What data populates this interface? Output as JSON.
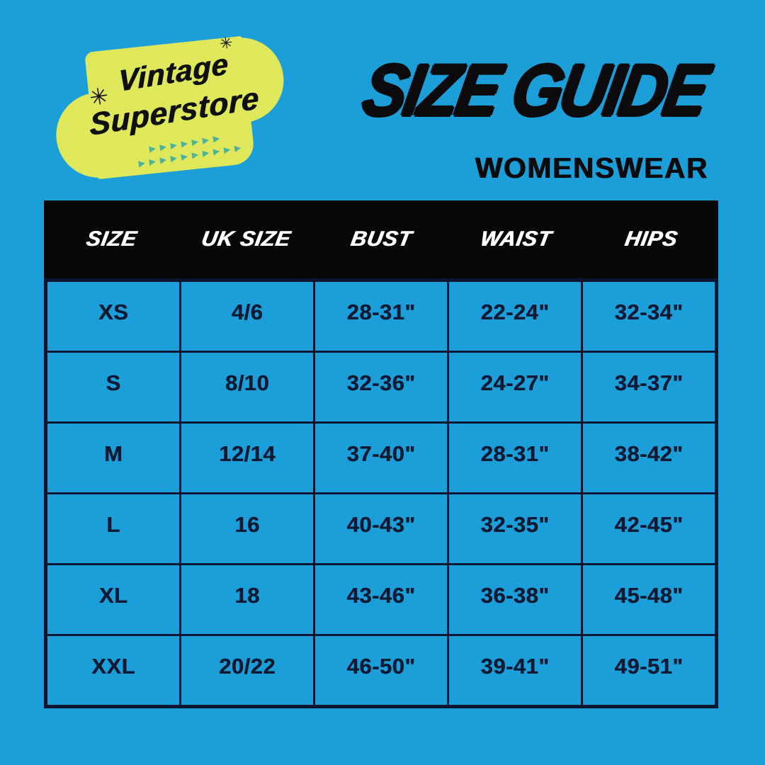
{
  "page": {
    "background_color": "#1C9ED9"
  },
  "logo": {
    "line1": "Vintage",
    "line2": "Superstore",
    "badge_color": "#DEE85A",
    "text_color": "#101010",
    "arrow_color": "#4BB39B",
    "sparkle_glyph": "✳",
    "arrows_row1": "▶▶▶▶▶▶▶",
    "arrows_row2": "▶▶▶▶▶▶▶▶▶▶"
  },
  "header": {
    "title": "SIZE GUIDE",
    "subtitle": "WOMENSWEAR",
    "text_color": "#0b0b0d"
  },
  "table": {
    "header_bg": "#07070a",
    "header_text_color": "#FFFFFF",
    "cell_text_color": "#0e1a33",
    "border_color": "#0c1630",
    "columns": [
      "SIZE",
      "UK SIZE",
      "BUST",
      "WAIST",
      "HIPS"
    ],
    "rows": [
      [
        "XS",
        "4/6",
        "28-31\"",
        "22-24\"",
        "32-34\""
      ],
      [
        "S",
        "8/10",
        "32-36\"",
        "24-27\"",
        "34-37\""
      ],
      [
        "M",
        "12/14",
        "37-40\"",
        "28-31\"",
        "38-42\""
      ],
      [
        "L",
        "16",
        "40-43\"",
        "32-35\"",
        "42-45\""
      ],
      [
        "XL",
        "18",
        "43-46\"",
        "36-38\"",
        "45-48\""
      ],
      [
        "XXL",
        "20/22",
        "46-50\"",
        "39-41\"",
        "49-51\""
      ]
    ]
  },
  "chart_data": {
    "type": "table",
    "title": "SIZE GUIDE",
    "subtitle": "WOMENSWEAR",
    "columns": [
      "SIZE",
      "UK SIZE",
      "BUST",
      "WAIST",
      "HIPS"
    ],
    "rows": [
      [
        "XS",
        "4/6",
        "28-31\"",
        "22-24\"",
        "32-34\""
      ],
      [
        "S",
        "8/10",
        "32-36\"",
        "24-27\"",
        "34-37\""
      ],
      [
        "M",
        "12/14",
        "37-40\"",
        "28-31\"",
        "38-42\""
      ],
      [
        "L",
        "16",
        "40-43\"",
        "32-35\"",
        "42-45\""
      ],
      [
        "XL",
        "18",
        "43-46\"",
        "36-38\"",
        "45-48\""
      ],
      [
        "XXL",
        "20/22",
        "46-50\"",
        "39-41\"",
        "49-51\""
      ]
    ]
  }
}
